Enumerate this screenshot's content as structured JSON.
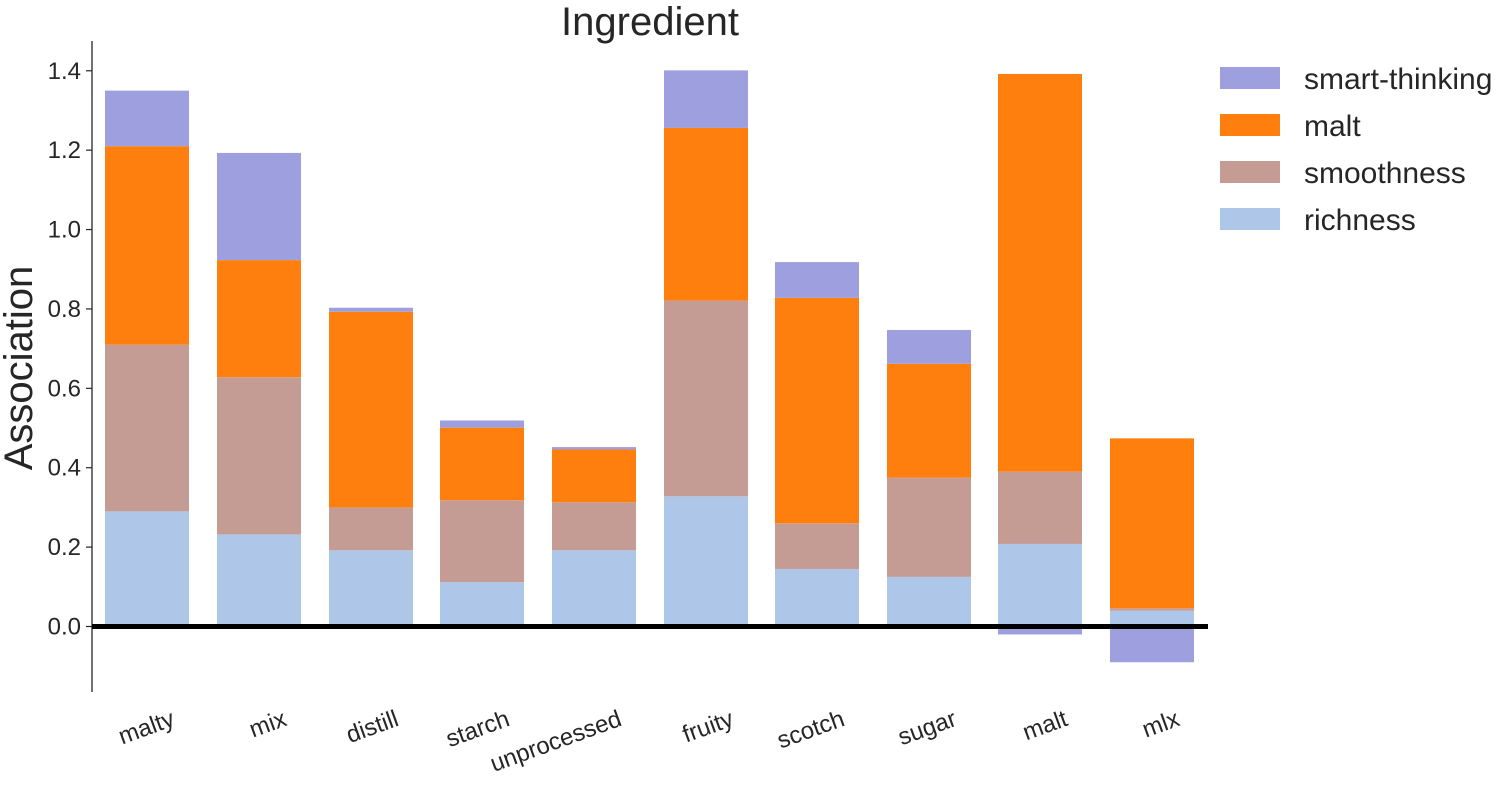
{
  "chart_data": {
    "type": "bar",
    "stacked": true,
    "title": "Ingredient",
    "xlabel": "",
    "ylabel": "Association",
    "ylim": [
      -0.165,
      1.475
    ],
    "yticks": [
      "0.0",
      "0.2",
      "0.4",
      "0.6",
      "0.8",
      "1.0",
      "1.2",
      "1.4"
    ],
    "ytick_values": [
      0.0,
      0.2,
      0.4,
      0.6,
      0.8,
      1.0,
      1.2,
      1.4
    ],
    "grid": false,
    "legend_position": "top-right-outside",
    "categories": [
      "malty",
      "mix",
      "distill",
      "starch",
      "unprocessed",
      "fruity",
      "scotch",
      "sugar",
      "malt",
      "mlx"
    ],
    "series": [
      {
        "name": "richness",
        "color": "#aec7e8",
        "values": [
          0.29,
          0.232,
          0.192,
          0.112,
          0.192,
          0.328,
          0.145,
          0.125,
          0.208,
          0.04
        ]
      },
      {
        "name": "smoothness",
        "color": "#c49c94",
        "values": [
          0.42,
          0.396,
          0.108,
          0.206,
          0.121,
          0.493,
          0.115,
          0.25,
          0.182,
          0.006
        ]
      },
      {
        "name": "malt",
        "color": "#ff7f0e",
        "values": [
          0.5,
          0.295,
          0.493,
          0.183,
          0.133,
          0.435,
          0.568,
          0.287,
          1.002,
          0.428
        ]
      },
      {
        "name": "smart-thinking",
        "color": "#9e9fde",
        "values": [
          0.14,
          0.27,
          0.01,
          0.018,
          0.006,
          0.145,
          0.09,
          0.085,
          -0.02,
          -0.09
        ]
      }
    ]
  }
}
